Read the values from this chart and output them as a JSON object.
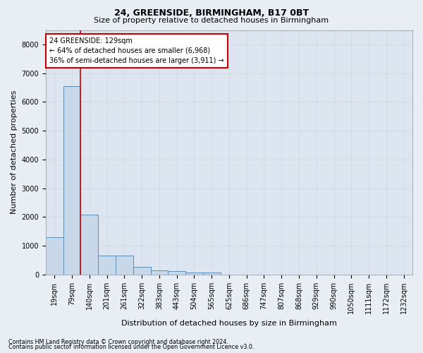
{
  "title": "24, GREENSIDE, BIRMINGHAM, B17 0BT",
  "subtitle": "Size of property relative to detached houses in Birmingham",
  "xlabel": "Distribution of detached houses by size in Birmingham",
  "ylabel": "Number of detached properties",
  "footnote1": "Contains HM Land Registry data © Crown copyright and database right 2024.",
  "footnote2": "Contains public sector information licensed under the Open Government Licence v3.0.",
  "bar_labels": [
    "19sqm",
    "79sqm",
    "140sqm",
    "201sqm",
    "261sqm",
    "322sqm",
    "383sqm",
    "443sqm",
    "504sqm",
    "565sqm",
    "625sqm",
    "686sqm",
    "747sqm",
    "807sqm",
    "868sqm",
    "929sqm",
    "990sqm",
    "1050sqm",
    "1111sqm",
    "1172sqm",
    "1232sqm"
  ],
  "bar_values": [
    1300,
    6550,
    2090,
    650,
    650,
    270,
    140,
    110,
    70,
    70,
    0,
    0,
    0,
    0,
    0,
    0,
    0,
    0,
    0,
    0,
    0
  ],
  "bar_color": "#c8d8e8",
  "bar_edge_color": "#5b8db8",
  "vline_x": 1.5,
  "annotation_title": "24 GREENSIDE: 129sqm",
  "annotation_line1": "← 64% of detached houses are smaller (6,968)",
  "annotation_line2": "36% of semi-detached houses are larger (3,911) →",
  "annotation_box_color": "#ffffff",
  "annotation_box_edge_color": "#cc0000",
  "vline_color": "#cc0000",
  "grid_color": "#d0d8e0",
  "bg_color": "#e8eef4",
  "plot_bg_color": "#dde6f0",
  "ylim": [
    0,
    8500
  ],
  "yticks": [
    0,
    1000,
    2000,
    3000,
    4000,
    5000,
    6000,
    7000,
    8000
  ],
  "title_fontsize": 9,
  "subtitle_fontsize": 8,
  "ylabel_fontsize": 8,
  "xlabel_fontsize": 8,
  "tick_fontsize": 7,
  "annot_fontsize": 7
}
